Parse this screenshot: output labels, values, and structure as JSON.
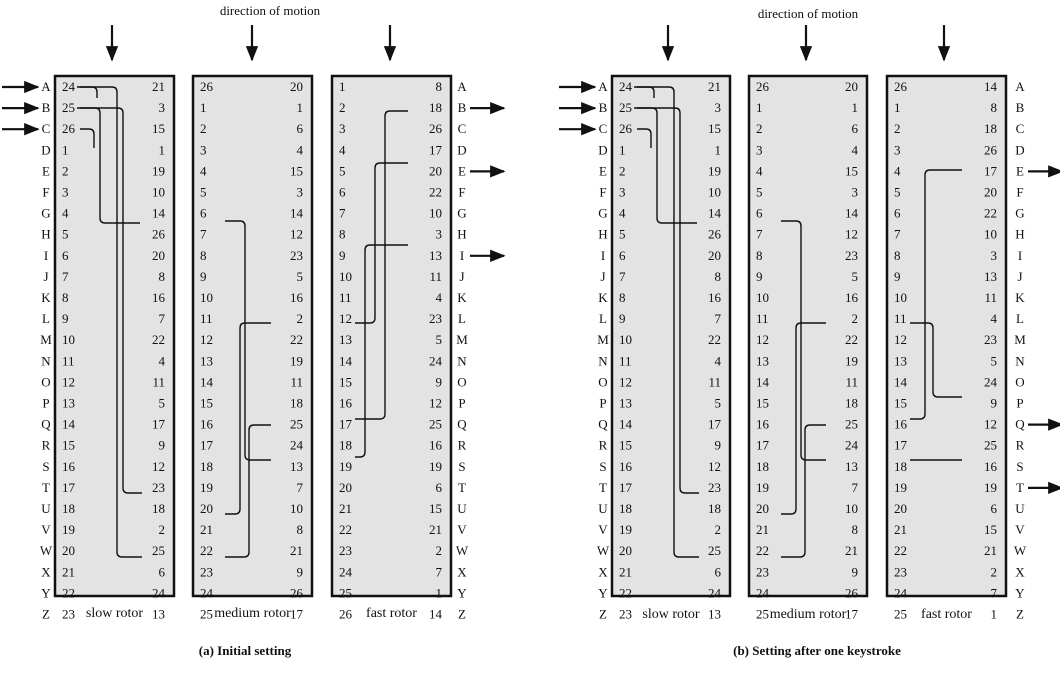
{
  "letters": [
    "A",
    "B",
    "C",
    "D",
    "E",
    "F",
    "G",
    "H",
    "I",
    "J",
    "K",
    "L",
    "M",
    "N",
    "O",
    "P",
    "Q",
    "R",
    "S",
    "T",
    "U",
    "V",
    "W",
    "X",
    "Y",
    "Z"
  ],
  "panels": [
    {
      "id": "a",
      "direction_label": "direction of motion",
      "title": "(a) Initial setting",
      "input_letters": [
        "A",
        "B",
        "C"
      ],
      "output_letters": [
        "B",
        "E",
        "I"
      ],
      "rotors": [
        {
          "name": "slow rotor",
          "left": [
            24,
            25,
            26,
            1,
            2,
            3,
            4,
            5,
            6,
            7,
            8,
            9,
            10,
            11,
            12,
            13,
            14,
            15,
            16,
            17,
            18,
            19,
            20,
            21,
            22,
            23
          ],
          "right": [
            21,
            3,
            15,
            1,
            19,
            10,
            14,
            26,
            20,
            8,
            16,
            7,
            22,
            4,
            11,
            5,
            17,
            9,
            12,
            23,
            18,
            2,
            25,
            6,
            24,
            13
          ]
        },
        {
          "name": "medium rotor",
          "left": [
            26,
            1,
            2,
            3,
            4,
            5,
            6,
            7,
            8,
            9,
            10,
            11,
            12,
            13,
            14,
            15,
            16,
            17,
            18,
            19,
            20,
            21,
            22,
            23,
            24,
            25
          ],
          "right": [
            20,
            1,
            6,
            4,
            15,
            3,
            14,
            12,
            23,
            5,
            16,
            2,
            22,
            19,
            11,
            18,
            25,
            24,
            13,
            7,
            10,
            8,
            21,
            9,
            26,
            17
          ]
        },
        {
          "name": "fast rotor",
          "left": [
            1,
            2,
            3,
            4,
            5,
            6,
            7,
            8,
            9,
            10,
            11,
            12,
            13,
            14,
            15,
            16,
            17,
            18,
            19,
            20,
            21,
            22,
            23,
            24,
            25,
            26
          ],
          "right": [
            8,
            18,
            26,
            17,
            20,
            22,
            10,
            3,
            13,
            11,
            4,
            23,
            5,
            24,
            9,
            12,
            25,
            16,
            19,
            6,
            15,
            21,
            2,
            7,
            1,
            14
          ]
        }
      ]
    },
    {
      "id": "b",
      "direction_label": "direction of motion",
      "title": "(b) Setting after one keystroke",
      "input_letters": [
        "A",
        "B",
        "C"
      ],
      "output_letters": [
        "E",
        "Q",
        "T"
      ],
      "rotors": [
        {
          "name": "slow rotor",
          "left": [
            24,
            25,
            26,
            1,
            2,
            3,
            4,
            5,
            6,
            7,
            8,
            9,
            10,
            11,
            12,
            13,
            14,
            15,
            16,
            17,
            18,
            19,
            20,
            21,
            22,
            23
          ],
          "right": [
            21,
            3,
            15,
            1,
            19,
            10,
            14,
            26,
            20,
            8,
            16,
            7,
            22,
            4,
            11,
            5,
            17,
            9,
            12,
            23,
            18,
            2,
            25,
            6,
            24,
            13
          ]
        },
        {
          "name": "medium rotor",
          "left": [
            26,
            1,
            2,
            3,
            4,
            5,
            6,
            7,
            8,
            9,
            10,
            11,
            12,
            13,
            14,
            15,
            16,
            17,
            18,
            19,
            20,
            21,
            22,
            23,
            24,
            25
          ],
          "right": [
            20,
            1,
            6,
            4,
            15,
            3,
            14,
            12,
            23,
            5,
            16,
            2,
            22,
            19,
            11,
            18,
            25,
            24,
            13,
            7,
            10,
            8,
            21,
            9,
            26,
            17
          ]
        },
        {
          "name": "fast rotor",
          "left": [
            26,
            1,
            2,
            3,
            4,
            5,
            6,
            7,
            8,
            9,
            10,
            11,
            12,
            13,
            14,
            15,
            16,
            17,
            18,
            19,
            20,
            21,
            22,
            23,
            24,
            25
          ],
          "right": [
            14,
            8,
            18,
            26,
            17,
            20,
            22,
            10,
            3,
            13,
            11,
            4,
            23,
            5,
            24,
            9,
            12,
            25,
            16,
            19,
            6,
            15,
            21,
            2,
            7,
            1
          ]
        }
      ]
    }
  ]
}
